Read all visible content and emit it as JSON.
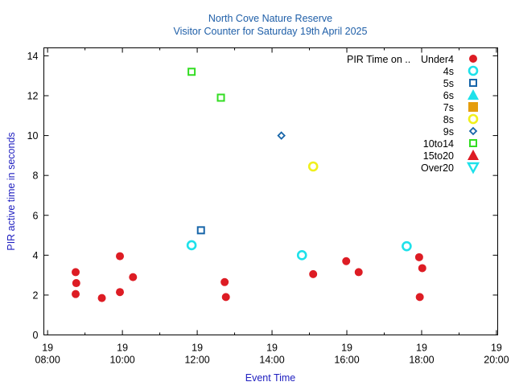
{
  "chart_data": {
    "type": "scatter",
    "title": "North Cove Nature Reserve",
    "subtitle": "Visitor Counter for Saturday 19th April 2025",
    "xlabel": "Event Time",
    "ylabel": "PIR active time in seconds",
    "xlim": [
      "2025-04-19 07:54",
      "2025-04-19 20:02"
    ],
    "ylim": [
      0,
      14.4
    ],
    "x_ticks": [
      {
        "date": "19",
        "time": "08:00",
        "value": "2025-04-19 08:00"
      },
      {
        "date": "19",
        "time": "10:00",
        "value": "2025-04-19 10:00"
      },
      {
        "date": "19",
        "time": "12:00",
        "value": "2025-04-19 12:00"
      },
      {
        "date": "19",
        "time": "14:00",
        "value": "2025-04-19 14:00"
      },
      {
        "date": "19",
        "time": "16:00",
        "value": "2025-04-19 16:00"
      },
      {
        "date": "19",
        "time": "18:00",
        "value": "2025-04-19 18:00"
      },
      {
        "date": "19",
        "time": "20:00",
        "value": "2025-04-19 20:00"
      }
    ],
    "y_ticks": [
      "0",
      "2",
      "4",
      "6",
      "8",
      "10",
      "12",
      "14"
    ],
    "grid": false,
    "legend_position": "top-right",
    "legend_title": "PIR Time on ..",
    "series": [
      {
        "name": "Under4",
        "marker": "filled-circle",
        "color": "#dd1c24",
        "points": [
          [
            "08:45",
            3.15
          ],
          [
            "08:46",
            2.6
          ],
          [
            "08:45",
            2.05
          ],
          [
            "09:27",
            1.85
          ],
          [
            "09:56",
            3.95
          ],
          [
            "09:56",
            2.15
          ],
          [
            "10:17",
            2.9
          ],
          [
            "12:44",
            2.65
          ],
          [
            "12:46",
            1.9
          ],
          [
            "15:06",
            3.05
          ],
          [
            "15:59",
            3.7
          ],
          [
            "16:19",
            3.15
          ],
          [
            "17:56",
            3.9
          ],
          [
            "18:01",
            3.35
          ],
          [
            "17:57",
            1.9
          ]
        ]
      },
      {
        "name": "4s",
        "marker": "open-circle",
        "color": "#1ee1ea",
        "points": [
          [
            "11:51",
            4.5
          ],
          [
            "14:48",
            4.0
          ],
          [
            "17:36",
            4.45
          ]
        ]
      },
      {
        "name": "5s",
        "marker": "open-square",
        "color": "#1765a9",
        "points": [
          [
            "12:06",
            5.25
          ]
        ]
      },
      {
        "name": "6s",
        "marker": "filled-triangle-up",
        "color": "#1ee1ea",
        "points": []
      },
      {
        "name": "7s",
        "marker": "filled-square",
        "color": "#e59c0c",
        "points": []
      },
      {
        "name": "8s",
        "marker": "open-circle",
        "color": "#f0f01c",
        "points": [
          [
            "15:06",
            8.45
          ]
        ]
      },
      {
        "name": "9s",
        "marker": "open-diamond",
        "color": "#1765a9",
        "points": [
          [
            "14:15",
            10.0
          ]
        ]
      },
      {
        "name": "10to14",
        "marker": "open-square",
        "color": "#33dd22",
        "points": [
          [
            "11:51",
            13.2
          ],
          [
            "12:38",
            11.9
          ]
        ]
      },
      {
        "name": "15to20",
        "marker": "filled-triangle-up",
        "color": "#dd1c24",
        "points": []
      },
      {
        "name": "Over20",
        "marker": "open-triangle-down",
        "color": "#1ee1ea",
        "points": []
      }
    ]
  }
}
